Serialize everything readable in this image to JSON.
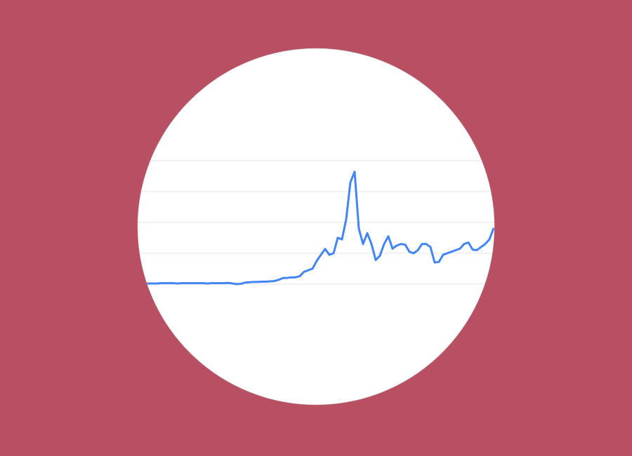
{
  "chart_data": {
    "type": "line",
    "series": [
      {
        "color": "#4285f4",
        "values": [
          0.02,
          0.02,
          0.02,
          0.02,
          0.03,
          0.03,
          0.03,
          0.03,
          0.02,
          0.03,
          0.03,
          0.03,
          0.03,
          0.03,
          0.03,
          0.02,
          0.03,
          0.03,
          0.03,
          0.03,
          0.04,
          0.02,
          0.0,
          0.01,
          0.05,
          0.06,
          0.07,
          0.07,
          0.08,
          0.08,
          0.09,
          0.1,
          0.14,
          0.2,
          0.2,
          0.22,
          0.22,
          0.26,
          0.4,
          0.45,
          0.5,
          0.75,
          0.95,
          1.14,
          0.95,
          1.0,
          1.5,
          1.45,
          2.1,
          3.3,
          3.64,
          1.8,
          1.3,
          1.65,
          1.3,
          0.78,
          0.92,
          1.3,
          1.55,
          1.15,
          1.25,
          1.3,
          1.28,
          1.05,
          1.0,
          1.1,
          1.3,
          1.3,
          1.2,
          0.7,
          0.72,
          0.95,
          1.0,
          1.05,
          1.1,
          1.15,
          1.3,
          1.35,
          1.12,
          1.1,
          1.2,
          1.3,
          1.45,
          1.82
        ]
      }
    ],
    "ylim": [
      0,
      4
    ],
    "yticks": [
      0,
      1,
      2,
      3,
      4
    ],
    "grid": true
  }
}
